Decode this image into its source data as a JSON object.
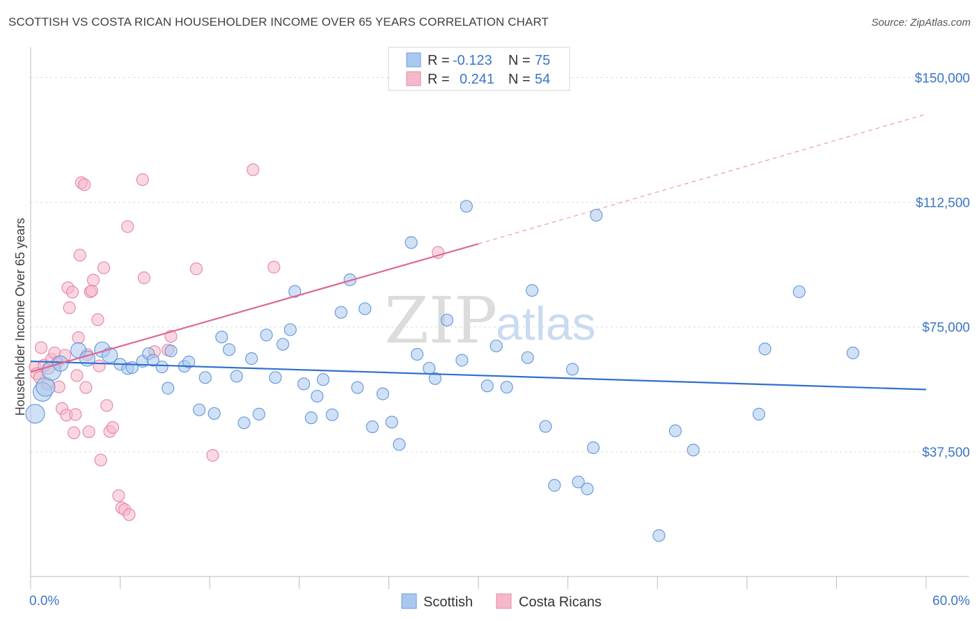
{
  "title": "SCOTTISH VS COSTA RICAN HOUSEHOLDER INCOME OVER 65 YEARS CORRELATION CHART",
  "source": "Source: ZipAtlas.com",
  "watermark": {
    "zip": "ZIP",
    "atlas": "atlas"
  },
  "colors": {
    "scottish_fill": "#a9c8ef",
    "scottish_stroke": "#6a9bdc",
    "scottish_line": "#2f6fca",
    "costa_fill": "#f5b8cb",
    "costa_stroke": "#e88aa8",
    "costa_line": "#e06693",
    "grid": "#d9d9d9",
    "tick_text": "#3b75c9"
  },
  "legend_box": {
    "rows": [
      {
        "r_label": "R =",
        "r_value": "-0.123",
        "n_label": "N =",
        "n_value": "75"
      },
      {
        "r_label": "R =",
        "r_value": "0.241",
        "n_label": "N =",
        "n_value": "54"
      }
    ]
  },
  "bottom_legend": [
    "Scottish",
    "Costa Ricans"
  ],
  "chart_data": {
    "type": "scatter",
    "title": "SCOTTISH VS COSTA RICAN HOUSEHOLDER INCOME OVER 65 YEARS CORRELATION CHART",
    "xlabel": "",
    "ylabel": "Householder Income Over 65 years",
    "xlim": [
      0,
      60
    ],
    "ylim": [
      0,
      157000
    ],
    "x_tick_labels": [
      "0.0%",
      "60.0%"
    ],
    "y_ticks": [
      37500,
      75000,
      112500,
      150000
    ],
    "y_tick_labels": [
      "$37,500",
      "$75,000",
      "$112,500",
      "$150,000"
    ],
    "grid": true,
    "legend_position": "top-center and bottom",
    "series": [
      {
        "name": "Scottish",
        "r": -0.123,
        "n": 75,
        "trend": {
          "x": [
            0,
            60
          ],
          "y": [
            64700,
            56200
          ],
          "dashed_extension": false
        },
        "points": [
          [
            0.3,
            48900,
            "xl"
          ],
          [
            0.8,
            55500,
            "xl"
          ],
          [
            1.0,
            57000,
            "xl"
          ],
          [
            1.4,
            61800,
            "xl"
          ],
          [
            2.0,
            64000,
            "l"
          ],
          [
            3.2,
            68000,
            "l"
          ],
          [
            3.8,
            65500,
            "l"
          ],
          [
            4.8,
            68200,
            "l"
          ],
          [
            5.3,
            66500,
            "l"
          ],
          [
            6.0,
            63800,
            "m"
          ],
          [
            6.5,
            62500,
            "m"
          ],
          [
            6.8,
            62800,
            "m"
          ],
          [
            7.5,
            64700,
            "m"
          ],
          [
            7.9,
            67000,
            "m"
          ],
          [
            8.2,
            65000,
            "m"
          ],
          [
            8.8,
            63000,
            "m"
          ],
          [
            9.2,
            56600,
            "m"
          ],
          [
            9.4,
            67800,
            "m"
          ],
          [
            10.3,
            63200,
            "m"
          ],
          [
            10.6,
            64500,
            "m"
          ],
          [
            11.3,
            50100,
            "m"
          ],
          [
            11.7,
            59800,
            "m"
          ],
          [
            12.3,
            49000,
            "m"
          ],
          [
            12.8,
            72000,
            "m"
          ],
          [
            13.3,
            68200,
            "m"
          ],
          [
            13.8,
            60200,
            "m"
          ],
          [
            14.3,
            46200,
            "m"
          ],
          [
            14.8,
            65500,
            "m"
          ],
          [
            15.3,
            48800,
            "m"
          ],
          [
            15.8,
            72600,
            "m"
          ],
          [
            16.4,
            59800,
            "m"
          ],
          [
            16.9,
            69800,
            "m"
          ],
          [
            17.4,
            74200,
            "m"
          ],
          [
            17.7,
            85700,
            "m"
          ],
          [
            18.3,
            57900,
            "m"
          ],
          [
            18.8,
            47700,
            "m"
          ],
          [
            19.2,
            54200,
            "m"
          ],
          [
            19.6,
            59200,
            "m"
          ],
          [
            20.2,
            48600,
            "m"
          ],
          [
            20.8,
            79400,
            "m"
          ],
          [
            21.4,
            89200,
            "m"
          ],
          [
            21.9,
            56800,
            "m"
          ],
          [
            22.4,
            80500,
            "m"
          ],
          [
            22.9,
            45000,
            "m"
          ],
          [
            23.6,
            54900,
            "m"
          ],
          [
            24.2,
            46400,
            "m"
          ],
          [
            24.7,
            39700,
            "m"
          ],
          [
            25.5,
            100400,
            "m"
          ],
          [
            25.9,
            66800,
            "m"
          ],
          [
            26.7,
            62600,
            "m"
          ],
          [
            27.1,
            59500,
            "m"
          ],
          [
            27.9,
            77100,
            "m"
          ],
          [
            28.9,
            65000,
            "m"
          ],
          [
            29.2,
            111300,
            "m"
          ],
          [
            30.6,
            57300,
            "m"
          ],
          [
            31.2,
            69300,
            "m"
          ],
          [
            31.9,
            56900,
            "m"
          ],
          [
            33.3,
            65800,
            "m"
          ],
          [
            33.6,
            86000,
            "m"
          ],
          [
            34.5,
            45100,
            "m"
          ],
          [
            35.1,
            27400,
            "m"
          ],
          [
            36.3,
            62300,
            "m"
          ],
          [
            36.7,
            28400,
            "m"
          ],
          [
            37.3,
            26300,
            "m"
          ],
          [
            37.7,
            38700,
            "m"
          ],
          [
            37.9,
            108600,
            "m"
          ],
          [
            42.1,
            12300,
            "m"
          ],
          [
            43.2,
            43800,
            "m"
          ],
          [
            44.4,
            38000,
            "m"
          ],
          [
            48.8,
            48800,
            "m"
          ],
          [
            49.2,
            68400,
            "m"
          ],
          [
            51.5,
            85600,
            "m"
          ],
          [
            55.1,
            67200,
            "m"
          ]
        ]
      },
      {
        "name": "Costa Ricans",
        "r": 0.241,
        "n": 54,
        "trend": {
          "x": [
            0,
            30,
            60
          ],
          "y": [
            61500,
            100000,
            139000
          ],
          "dashed_extension": true
        },
        "points": [
          [
            0.3,
            63000,
            "m"
          ],
          [
            0.4,
            61000,
            "m"
          ],
          [
            0.6,
            59800,
            "m"
          ],
          [
            0.7,
            68800,
            "m"
          ],
          [
            0.9,
            63500,
            "m"
          ],
          [
            1.1,
            57800,
            "m"
          ],
          [
            1.2,
            62600,
            "m"
          ],
          [
            1.4,
            65300,
            "m"
          ],
          [
            1.6,
            67200,
            "m"
          ],
          [
            1.8,
            64400,
            "m"
          ],
          [
            1.9,
            57000,
            "m"
          ],
          [
            2.1,
            50500,
            "m"
          ],
          [
            2.3,
            66500,
            "m"
          ],
          [
            2.4,
            48500,
            "m"
          ],
          [
            2.5,
            86800,
            "m"
          ],
          [
            2.6,
            80800,
            "m"
          ],
          [
            2.8,
            85500,
            "m"
          ],
          [
            2.9,
            43200,
            "m"
          ],
          [
            3.0,
            48700,
            "m"
          ],
          [
            3.1,
            60400,
            "m"
          ],
          [
            3.2,
            71800,
            "m"
          ],
          [
            3.3,
            96600,
            "m"
          ],
          [
            3.4,
            118400,
            "m"
          ],
          [
            3.6,
            117800,
            "m"
          ],
          [
            3.7,
            56800,
            "m"
          ],
          [
            3.8,
            66700,
            "m"
          ],
          [
            3.9,
            43500,
            "m"
          ],
          [
            4.0,
            85600,
            "m"
          ],
          [
            4.1,
            85900,
            "m"
          ],
          [
            4.2,
            89100,
            "m"
          ],
          [
            4.5,
            77200,
            "m"
          ],
          [
            4.6,
            63300,
            "m"
          ],
          [
            4.7,
            35000,
            "m"
          ],
          [
            4.9,
            92800,
            "m"
          ],
          [
            5.1,
            51400,
            "m"
          ],
          [
            5.3,
            43600,
            "m"
          ],
          [
            5.5,
            44800,
            "m"
          ],
          [
            5.9,
            24300,
            "m"
          ],
          [
            6.1,
            20600,
            "m"
          ],
          [
            6.3,
            20100,
            "m"
          ],
          [
            6.6,
            18600,
            "m"
          ],
          [
            6.5,
            105200,
            "m"
          ],
          [
            7.5,
            119300,
            "m"
          ],
          [
            7.6,
            89800,
            "m"
          ],
          [
            8.3,
            67600,
            "m"
          ],
          [
            9.2,
            68100,
            "m"
          ],
          [
            9.4,
            72200,
            "m"
          ],
          [
            11.1,
            92500,
            "m"
          ],
          [
            12.2,
            36400,
            "m"
          ],
          [
            14.9,
            122300,
            "m"
          ],
          [
            16.3,
            93000,
            "m"
          ],
          [
            27.3,
            97400,
            "m"
          ]
        ]
      }
    ]
  }
}
